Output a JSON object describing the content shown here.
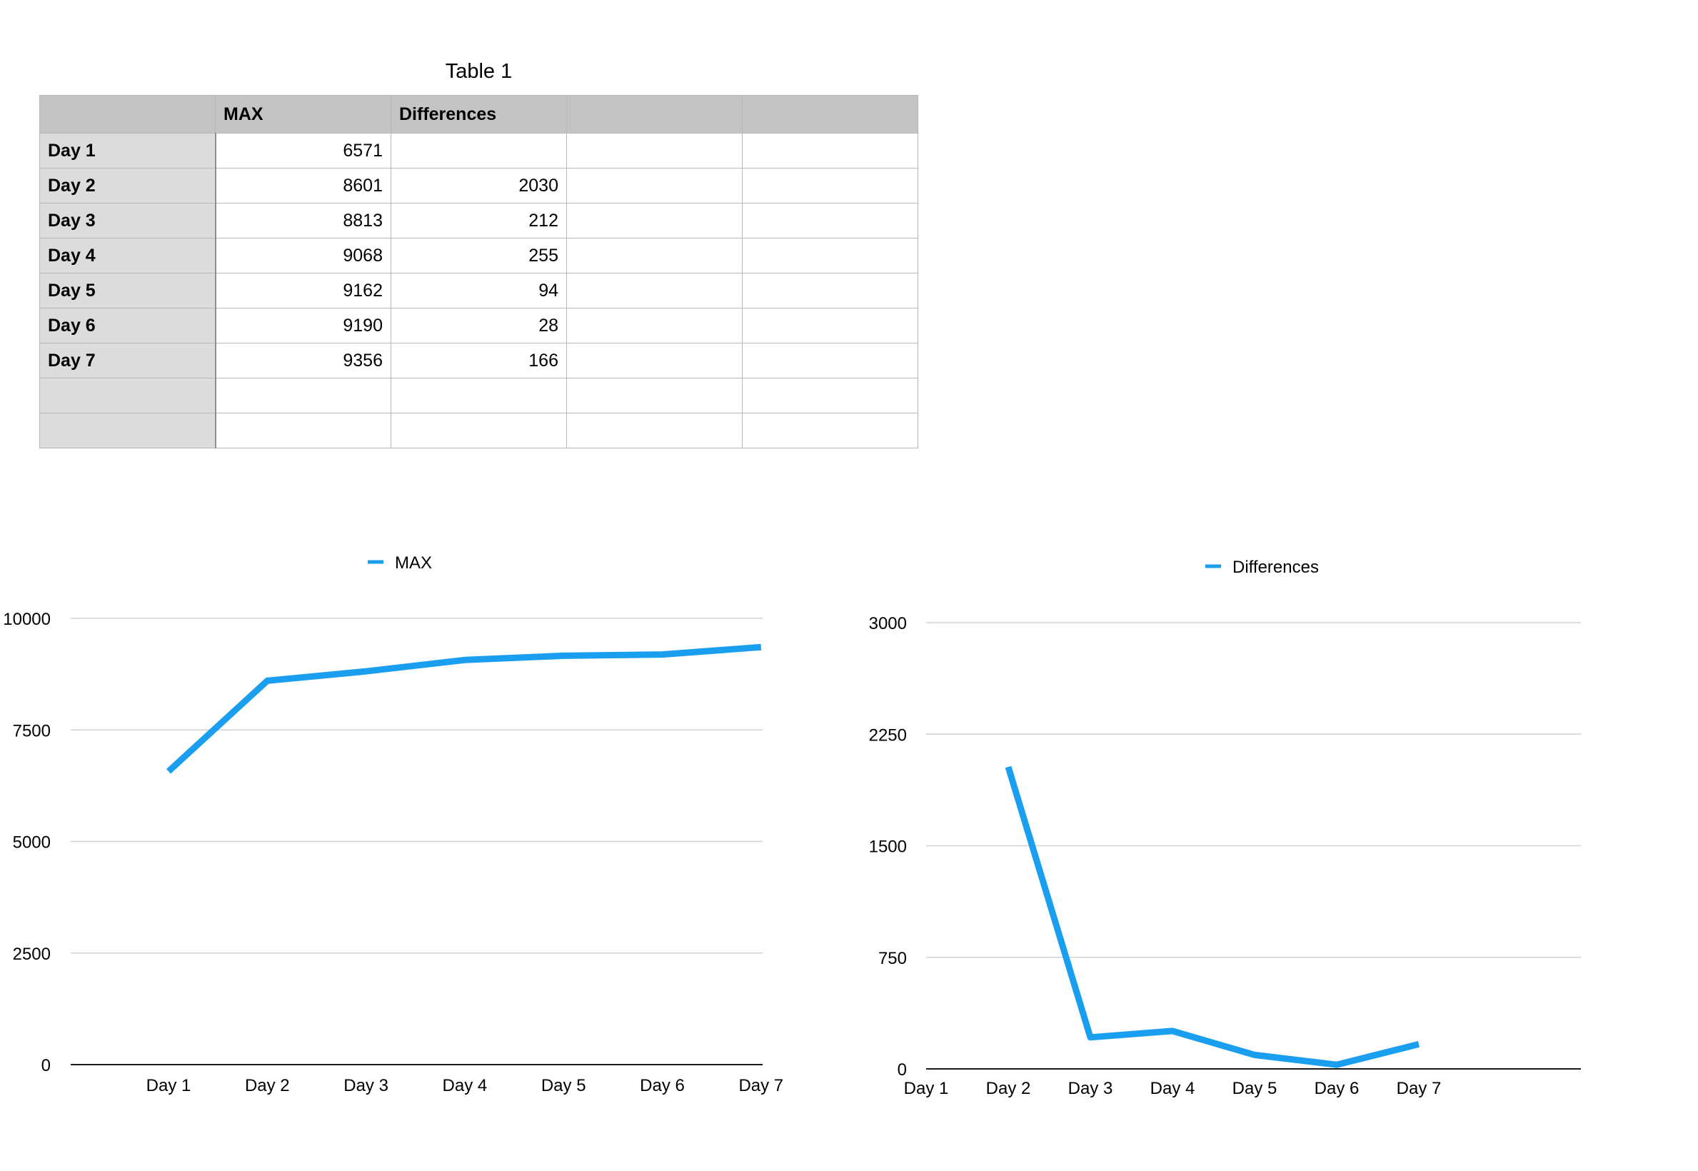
{
  "table": {
    "title": "Table 1",
    "headers": [
      "",
      "MAX",
      "Differences",
      "",
      ""
    ],
    "rows": [
      [
        "Day 1",
        "6571",
        "",
        "",
        ""
      ],
      [
        "Day 2",
        "8601",
        "2030",
        "",
        ""
      ],
      [
        "Day 3",
        "8813",
        "212",
        "",
        ""
      ],
      [
        "Day 4",
        "9068",
        "255",
        "",
        ""
      ],
      [
        "Day 5",
        "9162",
        "94",
        "",
        ""
      ],
      [
        "Day 6",
        "9190",
        "28",
        "",
        ""
      ],
      [
        "Day 7",
        "9356",
        "166",
        "",
        ""
      ],
      [
        "",
        "",
        "",
        "",
        ""
      ],
      [
        "",
        "",
        "",
        "",
        ""
      ]
    ]
  },
  "colors": {
    "series": "#1a9ff0",
    "header_bg": "#c3c4c3",
    "row_header_bg": "#dcdcdc"
  },
  "chart_data": [
    {
      "type": "line",
      "categories": [
        "Day 1",
        "Day 2",
        "Day 3",
        "Day 4",
        "Day 5",
        "Day 6",
        "Day 7"
      ],
      "series": [
        {
          "name": "MAX",
          "values": [
            6571,
            8601,
            8813,
            9068,
            9162,
            9190,
            9356
          ]
        }
      ],
      "ylim": [
        0,
        10000
      ],
      "yticks": [
        0,
        2500,
        5000,
        7500,
        10000
      ],
      "grid": true,
      "legend": "top-center"
    },
    {
      "type": "line",
      "categories": [
        "Day 1",
        "Day 2",
        "Day 3",
        "Day 4",
        "Day 5",
        "Day 6",
        "Day 7"
      ],
      "series": [
        {
          "name": "Differences",
          "values": [
            null,
            2030,
            212,
            255,
            94,
            28,
            166
          ]
        }
      ],
      "ylim": [
        0,
        3000
      ],
      "yticks": [
        0,
        750,
        1500,
        2250,
        3000
      ],
      "grid": true,
      "legend": "top-center"
    }
  ]
}
